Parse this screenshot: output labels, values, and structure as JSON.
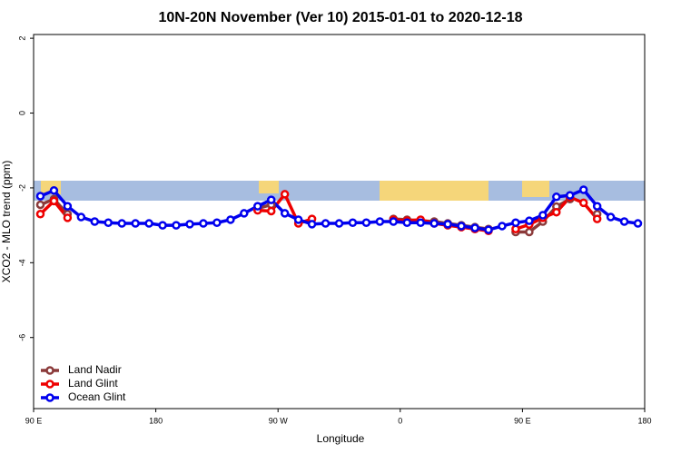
{
  "chart_data": {
    "type": "line",
    "title": "10N-20N November (Ver 10)   2015-01-01 to 2020-12-18",
    "x_label": "Longitude",
    "y_label": "XCO2 - MLO trend (ppm)",
    "x": [
      95,
      105,
      115,
      125,
      135,
      145,
      155,
      165,
      175,
      185,
      195,
      205,
      215,
      225,
      235,
      245,
      255,
      265,
      275,
      285,
      295,
      305,
      315,
      325,
      335,
      345,
      355,
      365,
      375,
      385,
      395,
      405,
      415,
      425,
      435,
      445,
      455,
      465,
      475,
      485,
      495,
      505,
      515,
      525,
      535
    ],
    "series": [
      {
        "name": "Land Nadir",
        "color": "#8b3a3a",
        "values": [
          -2.45,
          -2.3,
          -2.7,
          null,
          null,
          null,
          null,
          null,
          null,
          null,
          null,
          null,
          null,
          null,
          null,
          null,
          -2.55,
          -2.45,
          null,
          null,
          null,
          null,
          null,
          null,
          null,
          null,
          -2.83,
          -2.85,
          -2.88,
          -2.9,
          -2.95,
          -3.0,
          -3.05,
          -3.1,
          null,
          -3.18,
          -3.18,
          -2.9,
          -2.5,
          -2.3,
          null,
          -2.7,
          null,
          null,
          null
        ]
      },
      {
        "name": "Land Glint",
        "color": "#ee0000",
        "values": [
          -2.7,
          -2.35,
          -2.8,
          null,
          null,
          null,
          null,
          null,
          null,
          null,
          null,
          null,
          null,
          null,
          null,
          null,
          -2.6,
          -2.62,
          -2.17,
          -2.95,
          -2.83,
          null,
          null,
          null,
          null,
          null,
          -2.85,
          -2.88,
          -2.85,
          -2.95,
          -3.0,
          -3.05,
          -3.1,
          -3.15,
          null,
          -3.1,
          -2.98,
          -2.8,
          -2.65,
          -2.25,
          -2.4,
          -2.83,
          null,
          null,
          null
        ]
      },
      {
        "name": "Ocean Glint",
        "color": "#0000ee",
        "values": [
          -2.22,
          -2.07,
          -2.49,
          -2.78,
          -2.9,
          -2.93,
          -2.95,
          -2.95,
          -2.95,
          -3.0,
          -3.0,
          -2.97,
          -2.95,
          -2.93,
          -2.85,
          -2.68,
          -2.49,
          -2.32,
          -2.68,
          -2.85,
          -2.97,
          -2.95,
          -2.95,
          -2.93,
          -2.93,
          -2.9,
          -2.9,
          -2.93,
          -2.93,
          -2.95,
          -2.97,
          -3.02,
          -3.07,
          -3.12,
          -3.02,
          -2.93,
          -2.88,
          -2.73,
          -2.24,
          -2.2,
          -2.05,
          -2.49,
          -2.78,
          -2.9,
          -2.95
        ]
      }
    ],
    "xlim": [
      90,
      540
    ],
    "xticks": [
      {
        "value": 90,
        "label": "90 E"
      },
      180,
      {
        "value": 270,
        "label": "90 W"
      },
      {
        "value": 360,
        "label": "0"
      },
      {
        "value": 450,
        "label": "90 E"
      },
      {
        "value": 540,
        "label": "180"
      }
    ],
    "ylim": [
      -7.9,
      2.1
    ],
    "yticks": [
      2,
      0,
      -2,
      -4,
      -6
    ],
    "legend": "bottom-left",
    "grid": false
  }
}
